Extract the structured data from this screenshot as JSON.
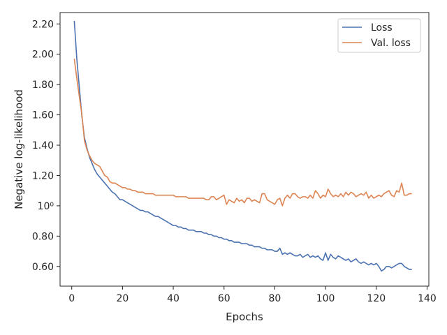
{
  "chart_data": {
    "type": "line",
    "xlabel": "Epochs",
    "ylabel": "Negative log-likelihood",
    "xlim": [
      -4.6,
      140.7
    ],
    "ylim": [
      0.47,
      2.275
    ],
    "xticks": [
      0,
      20,
      40,
      60,
      80,
      100,
      120,
      140
    ],
    "xtick_labels": [
      "0",
      "20",
      "40",
      "60",
      "80",
      "100",
      "120",
      "140"
    ],
    "yticks": [
      0.6,
      0.8,
      1.0,
      1.2,
      1.4,
      1.6,
      1.8,
      2.0,
      2.2
    ],
    "ytick_labels": [
      "0.60",
      "0.80",
      "10⁰",
      "1.20",
      "1.40",
      "1.60",
      "1.80",
      "2.00",
      "2.20"
    ],
    "grid": false,
    "legend_position": "top-right",
    "series": [
      {
        "name": "Loss",
        "color": "#4c72b0",
        "x": [
          1,
          2,
          3,
          4,
          5,
          6,
          7,
          8,
          9,
          10,
          11,
          12,
          13,
          14,
          15,
          16,
          17,
          18,
          19,
          20,
          21,
          22,
          23,
          24,
          25,
          26,
          27,
          28,
          29,
          30,
          31,
          32,
          33,
          34,
          35,
          36,
          37,
          38,
          39,
          40,
          41,
          42,
          43,
          44,
          45,
          46,
          47,
          48,
          49,
          50,
          51,
          52,
          53,
          54,
          55,
          56,
          57,
          58,
          59,
          60,
          61,
          62,
          63,
          64,
          65,
          66,
          67,
          68,
          69,
          70,
          71,
          72,
          73,
          74,
          75,
          76,
          77,
          78,
          79,
          80,
          81,
          82,
          83,
          84,
          85,
          86,
          87,
          88,
          89,
          90,
          91,
          92,
          93,
          94,
          95,
          96,
          97,
          98,
          99,
          100,
          101,
          102,
          103,
          104,
          105,
          106,
          107,
          108,
          109,
          110,
          111,
          112,
          113,
          114,
          115,
          116,
          117,
          118,
          119,
          120,
          121,
          122,
          123,
          124,
          125,
          126,
          127,
          128,
          129,
          130,
          131,
          132,
          133,
          134
        ],
        "y": [
          2.22,
          1.97,
          1.78,
          1.59,
          1.45,
          1.38,
          1.32,
          1.28,
          1.24,
          1.21,
          1.19,
          1.17,
          1.15,
          1.13,
          1.11,
          1.09,
          1.08,
          1.06,
          1.04,
          1.04,
          1.03,
          1.02,
          1.01,
          1.0,
          0.99,
          0.98,
          0.97,
          0.97,
          0.96,
          0.96,
          0.95,
          0.94,
          0.93,
          0.93,
          0.92,
          0.91,
          0.9,
          0.89,
          0.88,
          0.87,
          0.87,
          0.86,
          0.86,
          0.85,
          0.85,
          0.84,
          0.84,
          0.84,
          0.83,
          0.83,
          0.83,
          0.82,
          0.82,
          0.81,
          0.81,
          0.8,
          0.8,
          0.79,
          0.79,
          0.78,
          0.78,
          0.77,
          0.77,
          0.76,
          0.76,
          0.76,
          0.75,
          0.75,
          0.75,
          0.74,
          0.74,
          0.73,
          0.73,
          0.73,
          0.72,
          0.72,
          0.71,
          0.71,
          0.71,
          0.7,
          0.7,
          0.72,
          0.68,
          0.69,
          0.68,
          0.69,
          0.68,
          0.67,
          0.67,
          0.68,
          0.66,
          0.67,
          0.68,
          0.66,
          0.67,
          0.66,
          0.67,
          0.65,
          0.64,
          0.69,
          0.64,
          0.68,
          0.66,
          0.65,
          0.67,
          0.66,
          0.65,
          0.64,
          0.65,
          0.63,
          0.64,
          0.65,
          0.63,
          0.62,
          0.63,
          0.62,
          0.61,
          0.62,
          0.61,
          0.62,
          0.6,
          0.57,
          0.58,
          0.6,
          0.6,
          0.59,
          0.6,
          0.61,
          0.62,
          0.62,
          0.6,
          0.59,
          0.58,
          0.58
        ]
      },
      {
        "name": "Val. loss",
        "color": "#dd8452",
        "x": [
          1,
          2,
          3,
          4,
          5,
          6,
          7,
          8,
          9,
          10,
          11,
          12,
          13,
          14,
          15,
          16,
          17,
          18,
          19,
          20,
          21,
          22,
          23,
          24,
          25,
          26,
          27,
          28,
          29,
          30,
          31,
          32,
          33,
          34,
          35,
          36,
          37,
          38,
          39,
          40,
          41,
          42,
          43,
          44,
          45,
          46,
          47,
          48,
          49,
          50,
          51,
          52,
          53,
          54,
          55,
          56,
          57,
          58,
          59,
          60,
          61,
          62,
          63,
          64,
          65,
          66,
          67,
          68,
          69,
          70,
          71,
          72,
          73,
          74,
          75,
          76,
          77,
          78,
          79,
          80,
          81,
          82,
          83,
          84,
          85,
          86,
          87,
          88,
          89,
          90,
          91,
          92,
          93,
          94,
          95,
          96,
          97,
          98,
          99,
          100,
          101,
          102,
          103,
          104,
          105,
          106,
          107,
          108,
          109,
          110,
          111,
          112,
          113,
          114,
          115,
          116,
          117,
          118,
          119,
          120,
          121,
          122,
          123,
          124,
          125,
          126,
          127,
          128,
          129,
          130,
          131,
          132,
          133,
          134
        ],
        "y": [
          1.97,
          1.84,
          1.72,
          1.6,
          1.43,
          1.37,
          1.33,
          1.3,
          1.28,
          1.27,
          1.26,
          1.23,
          1.2,
          1.19,
          1.16,
          1.15,
          1.15,
          1.14,
          1.13,
          1.12,
          1.12,
          1.11,
          1.11,
          1.1,
          1.1,
          1.09,
          1.09,
          1.09,
          1.08,
          1.08,
          1.08,
          1.08,
          1.07,
          1.07,
          1.07,
          1.07,
          1.07,
          1.07,
          1.07,
          1.07,
          1.06,
          1.06,
          1.06,
          1.06,
          1.06,
          1.05,
          1.05,
          1.05,
          1.05,
          1.05,
          1.05,
          1.05,
          1.04,
          1.04,
          1.06,
          1.06,
          1.04,
          1.05,
          1.06,
          1.07,
          1.01,
          1.04,
          1.03,
          1.02,
          1.05,
          1.03,
          1.04,
          1.02,
          1.05,
          1.05,
          1.03,
          1.04,
          1.03,
          1.02,
          1.08,
          1.08,
          1.04,
          1.03,
          1.02,
          1.01,
          1.04,
          1.05,
          1.0,
          1.05,
          1.07,
          1.05,
          1.08,
          1.08,
          1.06,
          1.05,
          1.06,
          1.06,
          1.05,
          1.07,
          1.05,
          1.1,
          1.08,
          1.05,
          1.07,
          1.06,
          1.11,
          1.08,
          1.06,
          1.07,
          1.06,
          1.08,
          1.06,
          1.09,
          1.07,
          1.09,
          1.08,
          1.06,
          1.07,
          1.08,
          1.07,
          1.09,
          1.05,
          1.07,
          1.05,
          1.06,
          1.07,
          1.06,
          1.08,
          1.09,
          1.1,
          1.07,
          1.06,
          1.1,
          1.09,
          1.15,
          1.07,
          1.07,
          1.08,
          1.08
        ]
      }
    ]
  }
}
